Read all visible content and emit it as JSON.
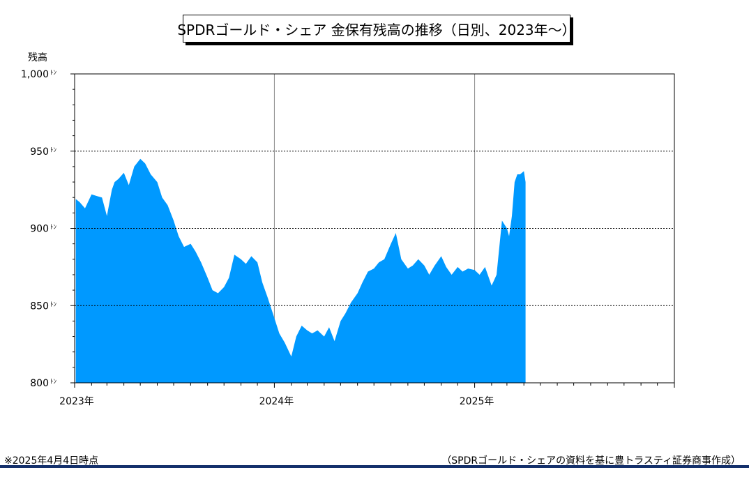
{
  "title": "SPDRゴールド・シェア 金保有残高の推移（日別、2023年～）",
  "note_left": "※2025年4月4日時点",
  "note_right": "（SPDRゴールド・シェアの資料を基に豊トラスティ証券商事作成）",
  "colors": {
    "area": "#0099ff",
    "frame": "#000000",
    "footer_rule": "#14306b"
  },
  "chart_data": {
    "type": "area",
    "title": "SPDRゴールド・シェア 金保有残高の推移（日別、2023年～）",
    "ylabel": "残高",
    "y_unit": "ﾄﾝ",
    "ylim": [
      800,
      1000
    ],
    "y_ticks": [
      800,
      850,
      900,
      950,
      1000
    ],
    "y_tick_labels": [
      "800",
      "850",
      "900",
      "950",
      "1,000"
    ],
    "xlim": [
      "2023-01-01",
      "2026-01-01"
    ],
    "x_tick_labels": [
      {
        "date": "2023-01-01",
        "label": "2023年"
      },
      {
        "date": "2024-01-01",
        "label": "2024年"
      },
      {
        "date": "2025-01-01",
        "label": "2025年"
      }
    ],
    "grid": {
      "horizontal": "dashed at 850, 900, 950",
      "vertical": "solid at year starts"
    },
    "series": [
      {
        "x": [
          "2023-01-03",
          "2023-01-10",
          "2023-01-20",
          "2023-02-01",
          "2023-02-10",
          "2023-02-20",
          "2023-03-01",
          "2023-03-10",
          "2023-03-15",
          "2023-03-22",
          "2023-04-01",
          "2023-04-10",
          "2023-04-20",
          "2023-05-01",
          "2023-05-10",
          "2023-05-20",
          "2023-06-01",
          "2023-06-10",
          "2023-06-20",
          "2023-07-01",
          "2023-07-10",
          "2023-07-20",
          "2023-08-01",
          "2023-08-10",
          "2023-08-20",
          "2023-09-01",
          "2023-09-10",
          "2023-09-20",
          "2023-10-01",
          "2023-10-10",
          "2023-10-20",
          "2023-11-01",
          "2023-11-10",
          "2023-11-20",
          "2023-12-01",
          "2023-12-10",
          "2023-12-20",
          "2024-01-01",
          "2024-01-10",
          "2024-01-20",
          "2024-02-01",
          "2024-02-10",
          "2024-02-20",
          "2024-03-01",
          "2024-03-10",
          "2024-03-20",
          "2024-04-01",
          "2024-04-10",
          "2024-04-20",
          "2024-05-01",
          "2024-05-10",
          "2024-05-20",
          "2024-06-01",
          "2024-06-10",
          "2024-06-20",
          "2024-07-01",
          "2024-07-10",
          "2024-07-20",
          "2024-08-01",
          "2024-08-10",
          "2024-08-20",
          "2024-09-01",
          "2024-09-10",
          "2024-09-20",
          "2024-10-01",
          "2024-10-10",
          "2024-10-20",
          "2024-11-01",
          "2024-11-10",
          "2024-11-20",
          "2024-12-01",
          "2024-12-10",
          "2024-12-20",
          "2025-01-01",
          "2025-01-10",
          "2025-01-20",
          "2025-02-01",
          "2025-02-05",
          "2025-02-10",
          "2025-02-20",
          "2025-03-01",
          "2025-03-05",
          "2025-03-10",
          "2025-03-15",
          "2025-03-20",
          "2025-03-25",
          "2025-04-01",
          "2025-04-04"
        ],
        "y": [
          919,
          917,
          913,
          922,
          921,
          920,
          908,
          925,
          930,
          932,
          936,
          928,
          940,
          945,
          942,
          935,
          930,
          920,
          915,
          905,
          895,
          888,
          890,
          885,
          878,
          868,
          860,
          858,
          862,
          868,
          883,
          880,
          877,
          882,
          878,
          865,
          855,
          842,
          832,
          826,
          817,
          830,
          837,
          834,
          832,
          834,
          830,
          836,
          827,
          840,
          845,
          852,
          858,
          865,
          872,
          874,
          878,
          880,
          890,
          897,
          880,
          874,
          876,
          880,
          876,
          870,
          876,
          882,
          875,
          870,
          875,
          872,
          874,
          873,
          870,
          875,
          863,
          866,
          870,
          905,
          900,
          895,
          908,
          930,
          935,
          935,
          937,
          930
        ],
        "fill": "#0099ff"
      }
    ]
  }
}
